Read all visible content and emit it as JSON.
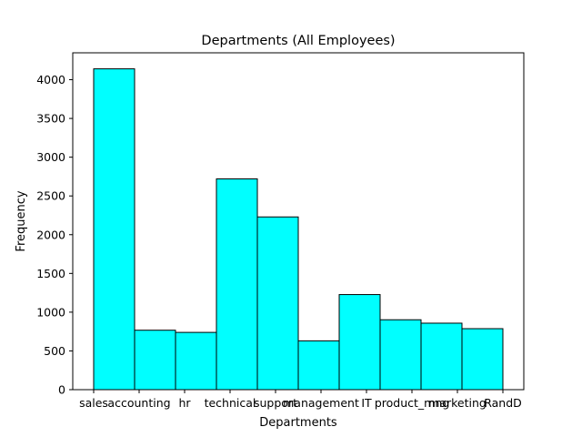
{
  "chart_data": {
    "type": "bar",
    "title": "Departments (All Employees)",
    "xlabel": "Departments",
    "ylabel": "Frequency",
    "categories": [
      "sales",
      "accounting",
      "hr",
      "technical",
      "support",
      "management",
      "IT",
      "product_mng",
      "marketing",
      "RandD"
    ],
    "values": [
      4140,
      767,
      739,
      2720,
      2229,
      630,
      1227,
      902,
      858,
      787
    ],
    "ylim": [
      0,
      4347
    ],
    "yticks": [
      0,
      500,
      1000,
      1500,
      2000,
      2500,
      3000,
      3500,
      4000
    ],
    "grid": false,
    "bar_color": "#00ffff",
    "edge_color": "#000000"
  }
}
